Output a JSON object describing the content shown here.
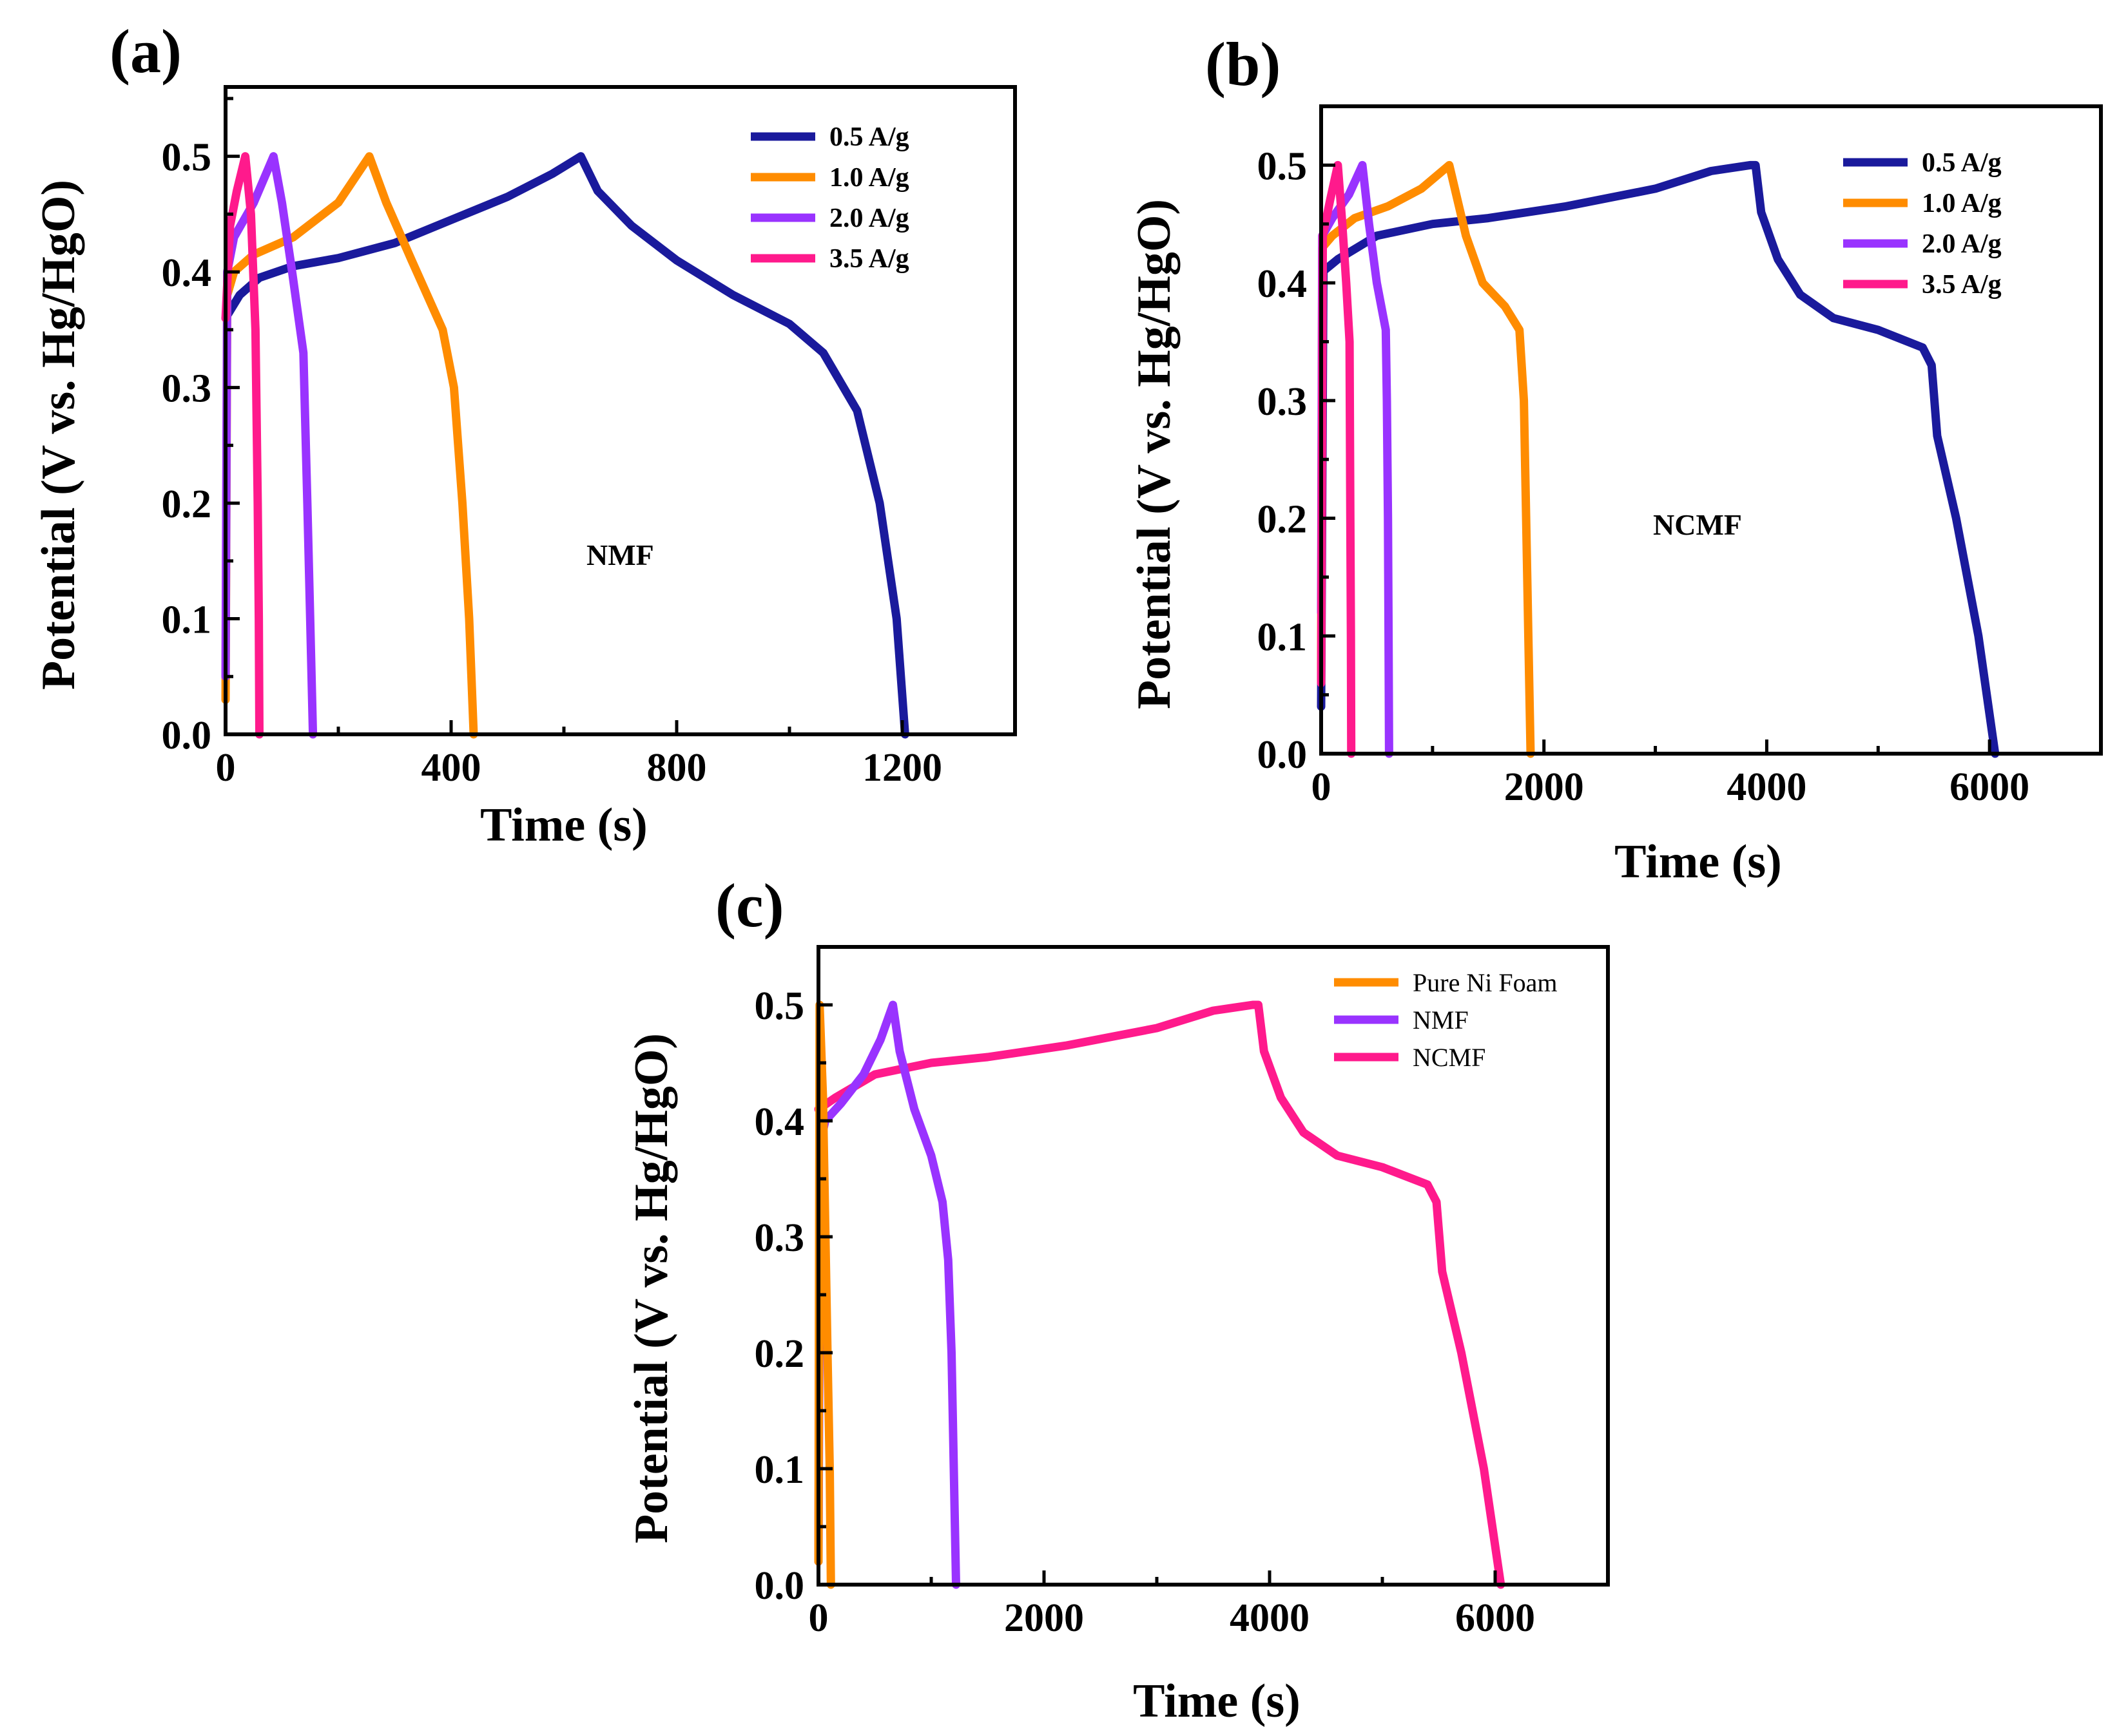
{
  "chart_data": [
    {
      "panel": "(a)",
      "type": "line",
      "xlabel": "Time (s)",
      "ylabel": "Potential (V vs. Hg/HgO)",
      "xlim": [
        0,
        1400
      ],
      "ylim": [
        0,
        0.56
      ],
      "xticks": [
        0,
        400,
        800,
        1200
      ],
      "xtick_labels": [
        "0",
        "400",
        "800",
        "1200"
      ],
      "yticks": [
        0,
        0.1,
        0.2,
        0.3,
        0.4,
        0.5
      ],
      "ytick_labels": [
        "0.0",
        "0.1",
        "0.2",
        "0.3",
        "0.4",
        "0.5"
      ],
      "annotation": "NMF",
      "legend_position": "top-right",
      "grid": false,
      "series": [
        {
          "name": "0.5 A/g",
          "color": "#1a1a9c",
          "points": [
            [
              0,
              0.36
            ],
            [
              25,
              0.38
            ],
            [
              60,
              0.395
            ],
            [
              120,
              0.405
            ],
            [
              200,
              0.412
            ],
            [
              300,
              0.425
            ],
            [
              400,
              0.445
            ],
            [
              500,
              0.465
            ],
            [
              580,
              0.485
            ],
            [
              630,
              0.5
            ],
            [
              660,
              0.47
            ],
            [
              720,
              0.44
            ],
            [
              800,
              0.41
            ],
            [
              900,
              0.38
            ],
            [
              1000,
              0.355
            ],
            [
              1060,
              0.33
            ],
            [
              1120,
              0.28
            ],
            [
              1160,
              0.2
            ],
            [
              1190,
              0.1
            ],
            [
              1205,
              0.0
            ]
          ]
        },
        {
          "name": "1.0 A/g",
          "color": "#ff8c00",
          "points": [
            [
              0,
              0.03
            ],
            [
              3,
              0.38
            ],
            [
              15,
              0.4
            ],
            [
              50,
              0.415
            ],
            [
              120,
              0.43
            ],
            [
              200,
              0.46
            ],
            [
              255,
              0.5
            ],
            [
              285,
              0.46
            ],
            [
              330,
              0.41
            ],
            [
              385,
              0.35
            ],
            [
              405,
              0.3
            ],
            [
              420,
              0.2
            ],
            [
              432,
              0.1
            ],
            [
              440,
              0.0
            ]
          ]
        },
        {
          "name": "2.0 A/g",
          "color": "#9933ff",
          "points": [
            [
              0,
              0.05
            ],
            [
              3,
              0.4
            ],
            [
              15,
              0.43
            ],
            [
              50,
              0.46
            ],
            [
              85,
              0.5
            ],
            [
              100,
              0.46
            ],
            [
              118,
              0.4
            ],
            [
              138,
              0.33
            ],
            [
              145,
              0.2
            ],
            [
              150,
              0.1
            ],
            [
              155,
              0.0
            ]
          ]
        },
        {
          "name": "3.5 A/g",
          "color": "#ff1a8c",
          "points": [
            [
              0,
              0.36
            ],
            [
              8,
              0.44
            ],
            [
              20,
              0.47
            ],
            [
              35,
              0.5
            ],
            [
              45,
              0.45
            ],
            [
              53,
              0.35
            ],
            [
              57,
              0.2
            ],
            [
              59,
              0.1
            ],
            [
              60,
              0.0
            ]
          ]
        }
      ]
    },
    {
      "panel": "(b)",
      "type": "line",
      "xlabel": "Time (s)",
      "ylabel": "Potential (V vs. Hg/HgO)",
      "xlim": [
        0,
        7000
      ],
      "ylim": [
        0,
        0.55
      ],
      "xticks": [
        0,
        2000,
        4000,
        6000
      ],
      "xtick_labels": [
        "0",
        "2000",
        "4000",
        "6000"
      ],
      "yticks": [
        0,
        0.1,
        0.2,
        0.3,
        0.4,
        0.5
      ],
      "ytick_labels": [
        "0.0",
        "0.1",
        "0.2",
        "0.3",
        "0.4",
        "0.5"
      ],
      "annotation": "NCMF",
      "legend_position": "top-right",
      "grid": false,
      "series": [
        {
          "name": "0.5 A/g",
          "color": "#1a1a9c",
          "points": [
            [
              0,
              0.04
            ],
            [
              20,
              0.41
            ],
            [
              150,
              0.42
            ],
            [
              500,
              0.44
            ],
            [
              1000,
              0.45
            ],
            [
              1500,
              0.455
            ],
            [
              2200,
              0.465
            ],
            [
              3000,
              0.48
            ],
            [
              3500,
              0.495
            ],
            [
              3850,
              0.5
            ],
            [
              3900,
              0.5
            ],
            [
              3950,
              0.46
            ],
            [
              4100,
              0.42
            ],
            [
              4300,
              0.39
            ],
            [
              4600,
              0.37
            ],
            [
              5000,
              0.36
            ],
            [
              5400,
              0.345
            ],
            [
              5480,
              0.33
            ],
            [
              5530,
              0.27
            ],
            [
              5700,
              0.2
            ],
            [
              5900,
              0.1
            ],
            [
              6050,
              0.0
            ]
          ]
        },
        {
          "name": "1.0 A/g",
          "color": "#ff8c00",
          "points": [
            [
              0,
              0.07
            ],
            [
              10,
              0.43
            ],
            [
              100,
              0.44
            ],
            [
              300,
              0.455
            ],
            [
              600,
              0.465
            ],
            [
              900,
              0.48
            ],
            [
              1150,
              0.5
            ],
            [
              1300,
              0.44
            ],
            [
              1450,
              0.4
            ],
            [
              1650,
              0.38
            ],
            [
              1780,
              0.36
            ],
            [
              1820,
              0.3
            ],
            [
              1840,
              0.2
            ],
            [
              1860,
              0.1
            ],
            [
              1880,
              0.0
            ]
          ]
        },
        {
          "name": "2.0 A/g",
          "color": "#9933ff",
          "points": [
            [
              0,
              0.12
            ],
            [
              10,
              0.44
            ],
            [
              100,
              0.455
            ],
            [
              250,
              0.475
            ],
            [
              370,
              0.5
            ],
            [
              430,
              0.45
            ],
            [
              500,
              0.4
            ],
            [
              580,
              0.36
            ],
            [
              590,
              0.3
            ],
            [
              600,
              0.2
            ],
            [
              605,
              0.1
            ],
            [
              610,
              0.0
            ]
          ]
        },
        {
          "name": "3.5 A/g",
          "color": "#ff1a8c",
          "points": [
            [
              0,
              0.06
            ],
            [
              15,
              0.44
            ],
            [
              80,
              0.47
            ],
            [
              150,
              0.5
            ],
            [
              190,
              0.45
            ],
            [
              225,
              0.4
            ],
            [
              255,
              0.35
            ],
            [
              262,
              0.2
            ],
            [
              267,
              0.1
            ],
            [
              270,
              0.0
            ]
          ]
        }
      ]
    },
    {
      "panel": "(c)",
      "type": "line",
      "xlabel": "Time (s)",
      "ylabel": "Potential (V vs. Hg/HgO)",
      "xlim": [
        0,
        7000
      ],
      "ylim": [
        0,
        0.55
      ],
      "xticks": [
        0,
        2000,
        4000,
        6000
      ],
      "xtick_labels": [
        "0",
        "2000",
        "4000",
        "6000"
      ],
      "yticks": [
        0,
        0.1,
        0.2,
        0.3,
        0.4,
        0.5
      ],
      "ytick_labels": [
        "0.0",
        "0.1",
        "0.2",
        "0.3",
        "0.4",
        "0.5"
      ],
      "legend_position": "top-right",
      "grid": false,
      "series": [
        {
          "name": "NCMF",
          "color": "#ff1a8c",
          "points": [
            [
              0,
              0.41
            ],
            [
              150,
              0.42
            ],
            [
              500,
              0.44
            ],
            [
              1000,
              0.45
            ],
            [
              1500,
              0.455
            ],
            [
              2200,
              0.465
            ],
            [
              3000,
              0.48
            ],
            [
              3500,
              0.495
            ],
            [
              3850,
              0.5
            ],
            [
              3900,
              0.5
            ],
            [
              3950,
              0.46
            ],
            [
              4100,
              0.42
            ],
            [
              4300,
              0.39
            ],
            [
              4600,
              0.37
            ],
            [
              5000,
              0.36
            ],
            [
              5400,
              0.345
            ],
            [
              5480,
              0.33
            ],
            [
              5530,
              0.27
            ],
            [
              5700,
              0.2
            ],
            [
              5900,
              0.1
            ],
            [
              6050,
              0.0
            ]
          ]
        },
        {
          "name": "NMF",
          "color": "#9933ff",
          "points": [
            [
              0,
              0.02
            ],
            [
              15,
              0.38
            ],
            [
              60,
              0.4
            ],
            [
              200,
              0.415
            ],
            [
              400,
              0.44
            ],
            [
              550,
              0.47
            ],
            [
              660,
              0.5
            ],
            [
              720,
              0.46
            ],
            [
              850,
              0.41
            ],
            [
              1000,
              0.37
            ],
            [
              1100,
              0.33
            ],
            [
              1150,
              0.28
            ],
            [
              1180,
              0.2
            ],
            [
              1200,
              0.1
            ],
            [
              1220,
              0.0
            ]
          ]
        },
        {
          "name": "Pure Ni Foam",
          "color": "#ff8c00",
          "points": [
            [
              0,
              0.02
            ],
            [
              10,
              0.5
            ],
            [
              40,
              0.42
            ],
            [
              80,
              0.2
            ],
            [
              100,
              0.1
            ],
            [
              110,
              0.0
            ]
          ]
        }
      ]
    }
  ]
}
